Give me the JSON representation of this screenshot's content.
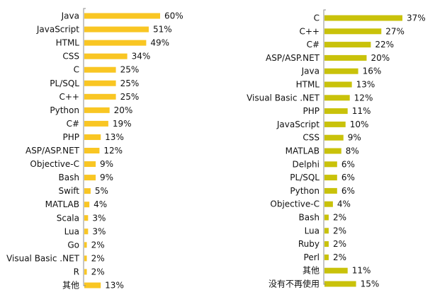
{
  "chart_data": [
    {
      "type": "bar",
      "orientation": "horizontal",
      "categories": [
        "Java",
        "JavaScript",
        "HTML",
        "CSS",
        "C",
        "PL/SQL",
        "C++",
        "Python",
        "C#",
        "PHP",
        "ASP/ASP.NET",
        "Objective-C",
        "Bash",
        "Swift",
        "MATLAB",
        "Scala",
        "Lua",
        "Go",
        "Visual Basic .NET",
        "R",
        "其他"
      ],
      "values": [
        60,
        51,
        49,
        34,
        25,
        25,
        25,
        20,
        19,
        13,
        12,
        9,
        9,
        5,
        4,
        3,
        3,
        2,
        2,
        2,
        13
      ],
      "value_labels": [
        "60%",
        "51%",
        "49%",
        "34%",
        "25%",
        "25%",
        "25%",
        "20%",
        "19%",
        "13%",
        "12%",
        "9%",
        "9%",
        "5%",
        "4%",
        "3%",
        "3%",
        "2%",
        "2%",
        "2%",
        "13%"
      ],
      "unit": "%",
      "xlim": [
        0,
        60
      ],
      "grid": false,
      "bar_color": "#f9c623"
    },
    {
      "type": "bar",
      "orientation": "horizontal",
      "categories": [
        "C",
        "C++",
        "C#",
        "ASP/ASP.NET",
        "Java",
        "HTML",
        "Visual Basic .NET",
        "PHP",
        "JavaScript",
        "CSS",
        "MATLAB",
        "Delphi",
        "PL/SQL",
        "Python",
        "Objective-C",
        "Bash",
        "Lua",
        "Ruby",
        "Perl",
        "其他",
        "没有不再使用"
      ],
      "values": [
        37,
        27,
        22,
        20,
        16,
        13,
        12,
        11,
        10,
        9,
        8,
        6,
        6,
        6,
        4,
        2,
        2,
        2,
        2,
        11,
        15
      ],
      "value_labels": [
        "37%",
        "27%",
        "22%",
        "20%",
        "16%",
        "13%",
        "12%",
        "11%",
        "10%",
        "9%",
        "8%",
        "6%",
        "6%",
        "6%",
        "4%",
        "2%",
        "2%",
        "2%",
        "2%",
        "11%",
        "15%"
      ],
      "unit": "%",
      "xlim": [
        0,
        37
      ],
      "grid": false,
      "bar_color": "#c9c20a"
    }
  ]
}
